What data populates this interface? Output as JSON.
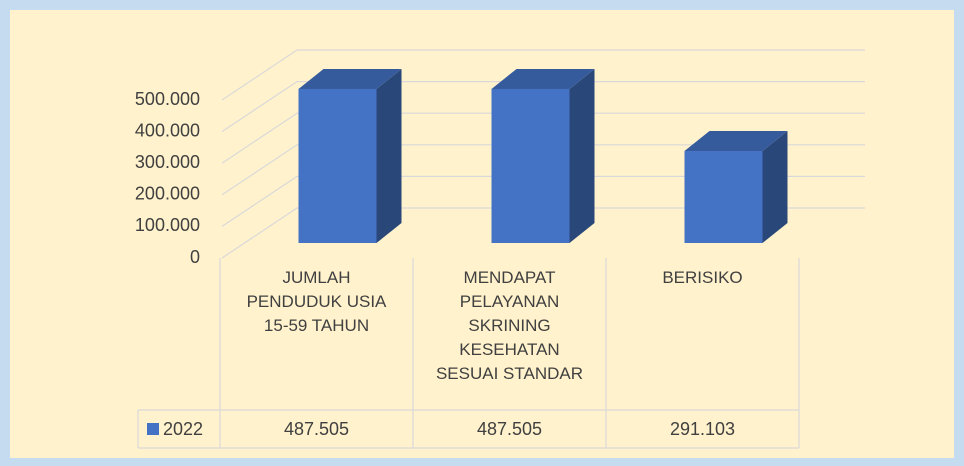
{
  "chart_data": {
    "type": "bar3d",
    "categories": [
      "JUMLAH PENDUDUK USIA 15-59 TAHUN",
      "MENDAPAT PELAYANAN SKRINING KESEHATAN SESUAI STANDAR",
      "BERISIKO"
    ],
    "series": [
      {
        "name": "2022",
        "color": "#4472c4",
        "values": [
          487505,
          487505,
          291103
        ],
        "value_labels": [
          "487.505",
          "487.505",
          "291.103"
        ]
      }
    ],
    "ylim": [
      0,
      500000
    ],
    "yticks": [
      0,
      {
        "value": 100000,
        "label": "100.000"
      },
      {
        "value": 200000,
        "label": "200.000"
      },
      {
        "value": 300000,
        "label": "300.000"
      },
      {
        "value": 400000,
        "label": "400.000"
      },
      {
        "value": 500000,
        "label": "500.000"
      }
    ],
    "grid": true,
    "data_table": true
  }
}
